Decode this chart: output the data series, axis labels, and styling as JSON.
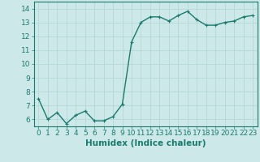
{
  "x": [
    0,
    1,
    2,
    3,
    4,
    5,
    6,
    7,
    8,
    9,
    10,
    11,
    12,
    13,
    14,
    15,
    16,
    17,
    18,
    19,
    20,
    21,
    22,
    23
  ],
  "y": [
    7.5,
    6.0,
    6.5,
    5.7,
    6.3,
    6.6,
    5.9,
    5.9,
    6.2,
    7.1,
    11.6,
    13.0,
    13.4,
    13.4,
    13.1,
    13.5,
    13.8,
    13.2,
    12.8,
    12.8,
    13.0,
    13.1,
    13.4,
    13.5
  ],
  "line_color": "#1a7a6e",
  "marker": "+",
  "marker_size": 3,
  "marker_linewidth": 0.8,
  "bg_color": "#cce8e8",
  "grid_color": "#b0d4d4",
  "xlabel": "Humidex (Indice chaleur)",
  "xlabel_fontsize": 7.5,
  "ylim": [
    5.5,
    14.5
  ],
  "xlim": [
    -0.5,
    23.5
  ],
  "yticks": [
    6,
    7,
    8,
    9,
    10,
    11,
    12,
    13,
    14
  ],
  "xticks": [
    0,
    1,
    2,
    3,
    4,
    5,
    6,
    7,
    8,
    9,
    10,
    11,
    12,
    13,
    14,
    15,
    16,
    17,
    18,
    19,
    20,
    21,
    22,
    23
  ],
  "tick_fontsize": 6.5,
  "spine_color": "#1a7a6e",
  "linewidth": 1.0
}
